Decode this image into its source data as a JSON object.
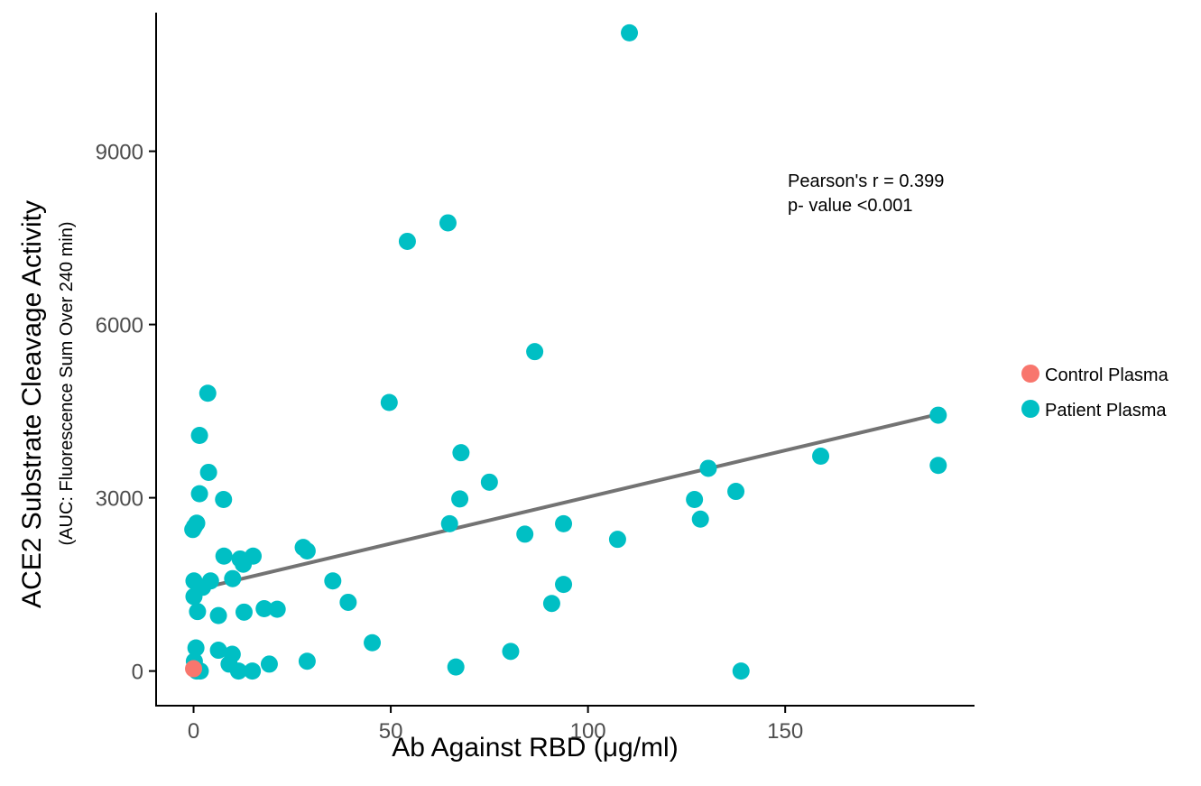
{
  "chart_data": {
    "type": "scatter",
    "title": "",
    "xlabel": "Ab Against RBD (μg/ml)",
    "ylabel": "ACE2 Substrate Cleavage Activity",
    "ylabel_sub": "(AUC: Fluorescence Sum Over 240 min)",
    "xlim": [
      -9.5,
      198
    ],
    "ylim": [
      -600,
      11400
    ],
    "x_ticks": [
      0,
      50,
      100,
      150
    ],
    "y_ticks": [
      0,
      3000,
      6000,
      9000
    ],
    "x_tick_labels": [
      "0",
      "50",
      "100",
      "150"
    ],
    "y_tick_labels": [
      "0",
      "3000",
      "6000",
      "9000"
    ],
    "grid": false,
    "legend_position": "right",
    "annotation": [
      "Pearson's r = 0.399",
      "p- value <0.001"
    ],
    "trend_line": {
      "x": [
        0,
        189
      ],
      "y": [
        1400,
        4450
      ],
      "color": "#737373"
    },
    "series": [
      {
        "name": "Control Plasma",
        "color": "#F8766D",
        "points": [
          [
            0,
            40
          ]
        ]
      },
      {
        "name": "Patient Plasma",
        "color": "#00BFC4",
        "points": [
          [
            110.5,
            11050
          ],
          [
            64.5,
            7760
          ],
          [
            54.2,
            7440
          ],
          [
            86.5,
            5530
          ],
          [
            49.6,
            4650
          ],
          [
            3.6,
            4810
          ],
          [
            1.5,
            4080
          ],
          [
            3.8,
            3440
          ],
          [
            67.8,
            3780
          ],
          [
            75.0,
            3270
          ],
          [
            130.5,
            3510
          ],
          [
            159.0,
            3720
          ],
          [
            188.8,
            4430
          ],
          [
            188.8,
            3560
          ],
          [
            137.5,
            3110
          ],
          [
            127.0,
            2970
          ],
          [
            128.5,
            2630
          ],
          [
            67.5,
            2980
          ],
          [
            64.9,
            2550
          ],
          [
            93.8,
            2550
          ],
          [
            84.0,
            2370
          ],
          [
            107.5,
            2280
          ],
          [
            1.5,
            3070
          ],
          [
            7.6,
            2970
          ],
          [
            0.2,
            2500
          ],
          [
            0.8,
            2560
          ],
          [
            -0.2,
            2450
          ],
          [
            27.8,
            2140
          ],
          [
            28.8,
            2080
          ],
          [
            7.7,
            1990
          ],
          [
            15.1,
            1990
          ],
          [
            11.8,
            1940
          ],
          [
            12.6,
            1850
          ],
          [
            0.1,
            1560
          ],
          [
            4.3,
            1560
          ],
          [
            9.9,
            1600
          ],
          [
            35.3,
            1560
          ],
          [
            0.1,
            1290
          ],
          [
            2.3,
            1450
          ],
          [
            93.8,
            1500
          ],
          [
            1.0,
            1030
          ],
          [
            6.3,
            960
          ],
          [
            12.8,
            1020
          ],
          [
            17.9,
            1080
          ],
          [
            21.2,
            1070
          ],
          [
            39.2,
            1190
          ],
          [
            90.8,
            1170
          ],
          [
            0.6,
            400
          ],
          [
            6.3,
            360
          ],
          [
            9.8,
            290
          ],
          [
            45.3,
            490
          ],
          [
            80.4,
            340
          ],
          [
            0.2,
            170
          ],
          [
            0.8,
            0
          ],
          [
            1.7,
            0
          ],
          [
            9.0,
            120
          ],
          [
            11.4,
            0
          ],
          [
            14.9,
            0
          ],
          [
            19.2,
            120
          ],
          [
            28.8,
            170
          ],
          [
            66.5,
            70
          ],
          [
            138.8,
            0
          ]
        ]
      }
    ]
  }
}
